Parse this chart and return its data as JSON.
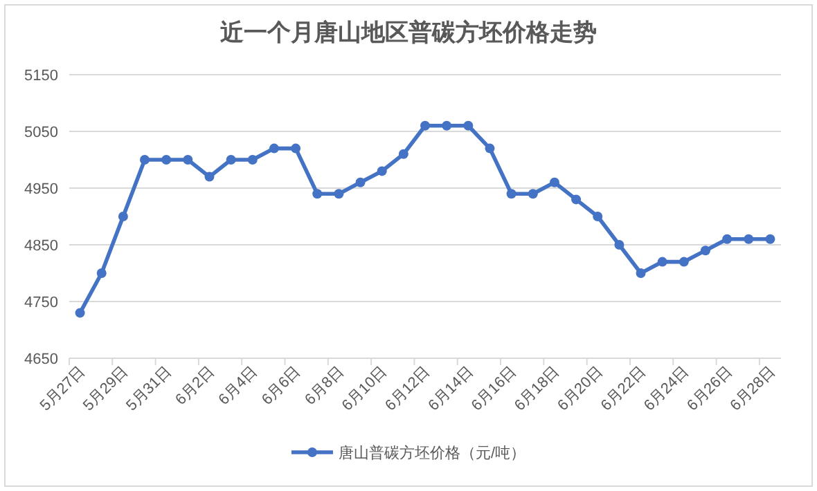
{
  "chart_data": {
    "type": "line",
    "title": "近一个月唐山地区普碳方坯价格走势",
    "categories": [
      "5月27日",
      null,
      "5月29日",
      null,
      "5月31日",
      null,
      "6月2日",
      null,
      "6月4日",
      null,
      "6月6日",
      null,
      "6月8日",
      null,
      "6月10日",
      null,
      "6月12日",
      null,
      "6月14日",
      null,
      "6月16日",
      null,
      "6月18日",
      null,
      "6月20日",
      null,
      "6月22日",
      null,
      "6月24日",
      null,
      "6月26日",
      null,
      "6月28日"
    ],
    "series": [
      {
        "name": "唐山普碳方坯价格（元/吨）",
        "color": "#4472c4",
        "values": [
          4730,
          4800,
          4900,
          5000,
          5000,
          5000,
          4970,
          5000,
          5000,
          5020,
          5020,
          4940,
          4940,
          4960,
          4980,
          5010,
          5060,
          5060,
          5060,
          5020,
          4940,
          4940,
          4960,
          4930,
          4900,
          4850,
          4800,
          4820,
          4820,
          4840,
          4860,
          4860,
          4860
        ]
      }
    ],
    "ylim": [
      4650,
      5150
    ],
    "yticks": [
      4650,
      4750,
      4850,
      4950,
      5050,
      5150
    ],
    "grid": "y",
    "legend": "bottom",
    "marker": "circle",
    "line_style": "solid"
  }
}
